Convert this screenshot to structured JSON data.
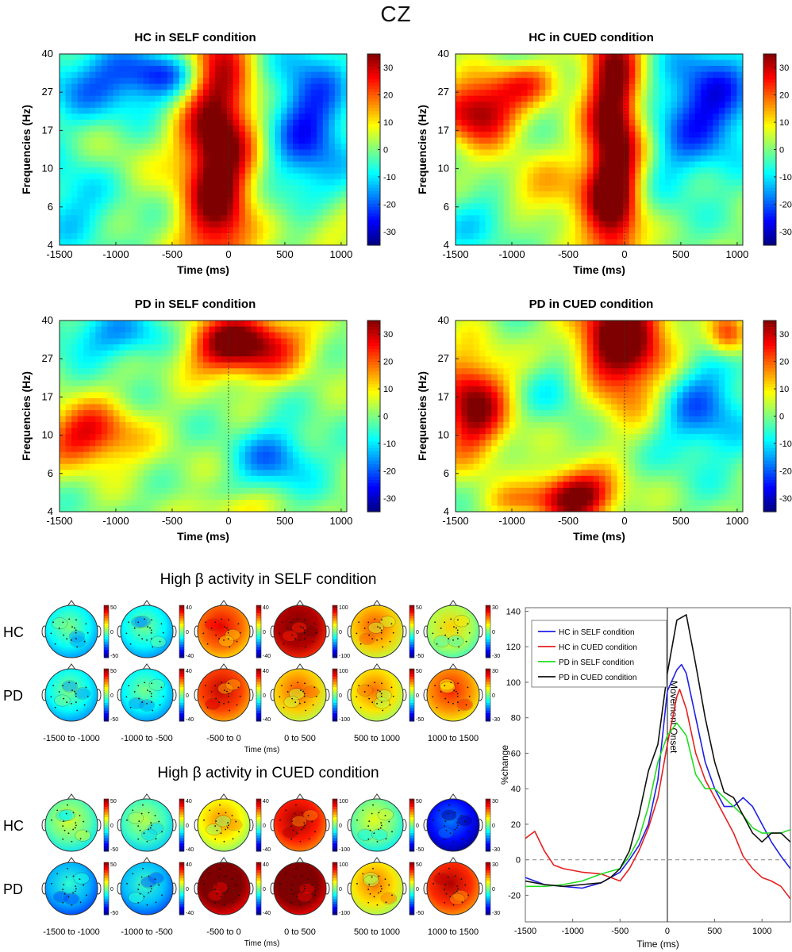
{
  "page_title": "CZ",
  "colors": {
    "jet": [
      "#00007f",
      "#0000ff",
      "#007fff",
      "#00ffff",
      "#7fff7f",
      "#ffff00",
      "#ff7f00",
      "#ff0000",
      "#7f0000"
    ],
    "hc_self": "#1f1fe6",
    "hc_cued": "#e62020",
    "pd_self": "#22dd22",
    "pd_cued": "#111111"
  },
  "chart_data": [
    {
      "type": "heatmap",
      "title": "HC in SELF condition",
      "xlabel": "Time (ms)",
      "ylabel": "Frequencies (Hz)",
      "xlim": [
        -1500,
        1050
      ],
      "xticks": [
        "-1500",
        "-1000",
        "-500",
        "0",
        "500",
        "1000"
      ],
      "yticks": [
        "4",
        "6",
        "10",
        "17",
        "27",
        "40"
      ],
      "colorbar_ticks": [
        "30",
        "20",
        "10",
        "0",
        "-10",
        "-20",
        "-30"
      ],
      "colorbar_range": [
        -35,
        35
      ]
    },
    {
      "type": "heatmap",
      "title": "HC in CUED  condition",
      "xlabel": "Time (ms)",
      "ylabel": "Frequencies (Hz)",
      "xlim": [
        -1500,
        1050
      ],
      "xticks": [
        "-1500",
        "-1000",
        "-500",
        "0",
        "500",
        "1000"
      ],
      "yticks": [
        "4",
        "6",
        "10",
        "17",
        "27",
        "40"
      ],
      "colorbar_ticks": [
        "30",
        "20",
        "10",
        "0",
        "-10",
        "-20",
        "-30"
      ],
      "colorbar_range": [
        -35,
        35
      ]
    },
    {
      "type": "heatmap",
      "title": "PD in SELF condition",
      "xlabel": "Time (ms)",
      "ylabel": "Frequencies (Hz)",
      "xlim": [
        -1500,
        1050
      ],
      "xticks": [
        "-1500",
        "-1000",
        "-500",
        "0",
        "500",
        "1000"
      ],
      "yticks": [
        "4",
        "6",
        "10",
        "17",
        "27",
        "40"
      ],
      "colorbar_ticks": [
        "30",
        "20",
        "10",
        "0",
        "-10",
        "-20",
        "-30"
      ],
      "colorbar_range": [
        -35,
        35
      ]
    },
    {
      "type": "heatmap",
      "title": "PD in CUED condition",
      "xlabel": "Time (ms)",
      "ylabel": "Frequencies (Hz)",
      "xlim": [
        -1500,
        1050
      ],
      "xticks": [
        "-1500",
        "-1000",
        "-500",
        "0",
        "500",
        "1000"
      ],
      "yticks": [
        "4",
        "6",
        "10",
        "17",
        "27",
        "40"
      ],
      "colorbar_ticks": [
        "30",
        "20",
        "10",
        "0",
        "-10",
        "-20",
        "-30"
      ],
      "colorbar_range": [
        -35,
        35
      ]
    },
    {
      "type": "heatmap",
      "title": "High β activity in SELF condition",
      "xlabel": "Time (ms)",
      "rows": [
        "HC",
        "PD"
      ],
      "windows": [
        "-1500 to -1000",
        "-1000 to -500",
        "-500 to 0",
        "0 to 500",
        "500 to 1000",
        "1000 to 1500"
      ],
      "colorbar_limits": [
        50,
        40,
        40,
        100,
        50,
        30
      ],
      "mean_values": [
        [
          -12,
          -10,
          22,
          90,
          18,
          3
        ],
        [
          -12,
          -10,
          25,
          35,
          15,
          14
        ]
      ]
    },
    {
      "type": "heatmap",
      "title": "High β activity in CUED condition",
      "xlabel": "Time (ms)",
      "rows": [
        "HC",
        "PD"
      ],
      "windows": [
        "-1500 to -1000",
        "-1000 to -500",
        "-500 to 0",
        "0 to 500",
        "500 to 1000",
        "1000 to 1500"
      ],
      "colorbar_limits": [
        50,
        40,
        40,
        100,
        50,
        30
      ],
      "mean_values": [
        [
          -3,
          -5,
          10,
          70,
          -2,
          -22
        ],
        [
          -20,
          -15,
          40,
          100,
          15,
          20
        ]
      ]
    },
    {
      "type": "line",
      "title": "",
      "xlabel": "Time (ms)",
      "ylabel": "%change",
      "xlim": [
        -1500,
        1300
      ],
      "ylim": [
        -35,
        142
      ],
      "xticks": [
        -1500,
        -1000,
        -500,
        0,
        500,
        1000
      ],
      "yticks": [
        -20,
        0,
        20,
        40,
        60,
        80,
        100,
        120,
        140
      ],
      "annotation": "Movement Onset",
      "legend_position": "top-left",
      "series": [
        {
          "name": "HC in SELF condition",
          "x": [
            -1500,
            -1300,
            -1100,
            -900,
            -700,
            -500,
            -400,
            -300,
            -200,
            -100,
            0,
            100,
            150,
            200,
            300,
            400,
            500,
            600,
            700,
            800,
            900,
            1000,
            1100,
            1200,
            1300
          ],
          "y": [
            -10,
            -14,
            -15,
            -16,
            -13,
            -7,
            0,
            8,
            20,
            45,
            95,
            107,
            110,
            105,
            80,
            55,
            40,
            30,
            30,
            35,
            30,
            20,
            10,
            2,
            -5
          ]
        },
        {
          "name": "HC in CUED condition",
          "x": [
            -1500,
            -1400,
            -1300,
            -1200,
            -1100,
            -900,
            -700,
            -500,
            -400,
            -300,
            -200,
            -100,
            0,
            100,
            130,
            200,
            300,
            400,
            500,
            600,
            700,
            800,
            900,
            1000,
            1100,
            1200,
            1300
          ],
          "y": [
            12,
            16,
            5,
            -3,
            -5,
            -7,
            -8,
            -12,
            -5,
            5,
            18,
            35,
            65,
            92,
            96,
            85,
            60,
            45,
            35,
            25,
            15,
            2,
            -5,
            -10,
            -12,
            -15,
            -22
          ]
        },
        {
          "name": "PD in SELF condition",
          "x": [
            -1500,
            -1300,
            -1100,
            -900,
            -700,
            -500,
            -400,
            -300,
            -200,
            -100,
            0,
            100,
            200,
            300,
            400,
            500,
            600,
            700,
            800,
            900,
            1000,
            1100,
            1200,
            1300
          ],
          "y": [
            -15,
            -15,
            -14,
            -12,
            -8,
            -5,
            2,
            12,
            30,
            55,
            70,
            77,
            70,
            48,
            40,
            40,
            35,
            30,
            25,
            18,
            15,
            15,
            15,
            17
          ]
        },
        {
          "name": "PD in CUED condition",
          "x": [
            -1500,
            -1300,
            -1100,
            -900,
            -700,
            -600,
            -500,
            -400,
            -300,
            -200,
            -100,
            0,
            100,
            200,
            300,
            400,
            500,
            600,
            700,
            800,
            900,
            1000,
            1100,
            1200,
            1300
          ],
          "y": [
            -12,
            -14,
            -15,
            -14,
            -13,
            -10,
            -5,
            5,
            25,
            50,
            65,
            105,
            135,
            138,
            110,
            80,
            55,
            38,
            35,
            25,
            15,
            10,
            15,
            15,
            10
          ]
        }
      ]
    }
  ]
}
